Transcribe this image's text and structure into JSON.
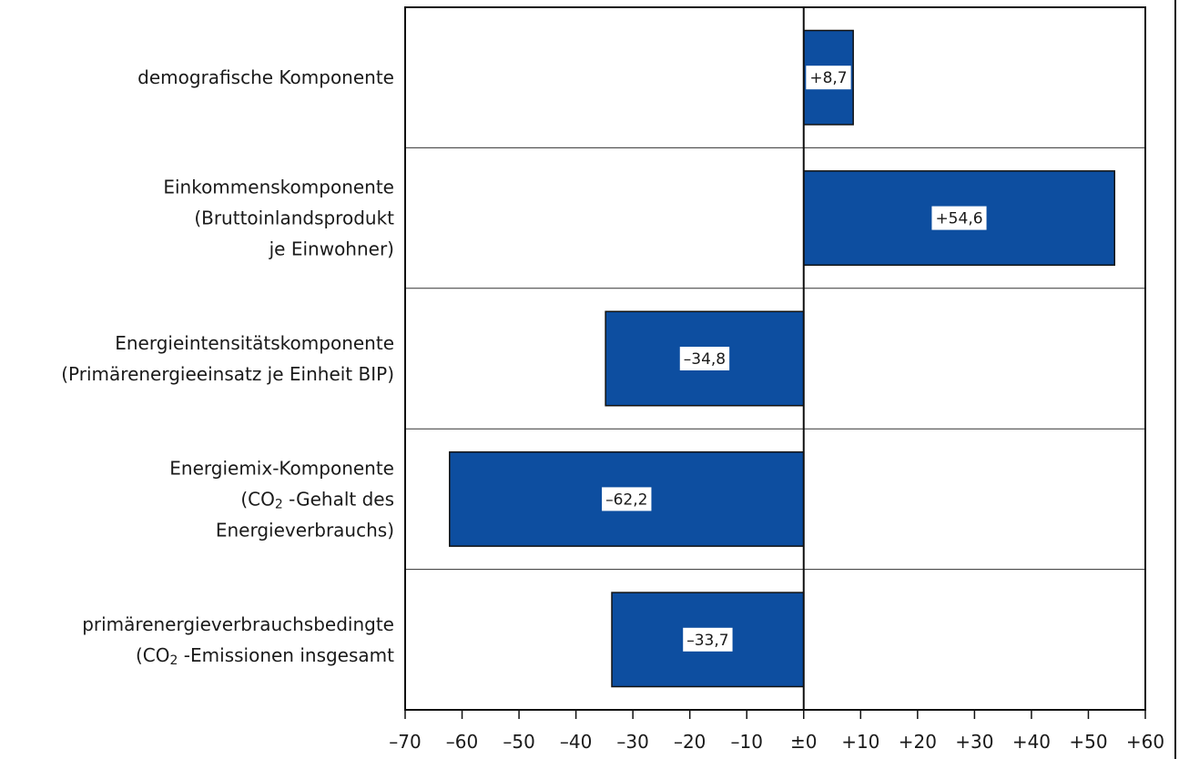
{
  "chart_data": {
    "type": "bar",
    "orientation": "horizontal",
    "categories": [
      [
        "demografische Komponente"
      ],
      [
        "Einkommenskomponente",
        "(Bruttoinlandsprodukt",
        "je Einwohner)"
      ],
      [
        "Energieintensitätskomponente",
        "(Primärenergieeinsatz je Einheit BIP)"
      ],
      [
        "Energiemix-Komponente",
        "(CO₂ -Gehalt des",
        "Energieverbrauchs)"
      ],
      [
        "primärenergieverbrauchsbedingte",
        "(CO₂ -Emissionen insgesamt"
      ]
    ],
    "values": [
      8.7,
      54.6,
      -34.8,
      -62.2,
      -33.7
    ],
    "value_labels": [
      "+8,7",
      "+54,6",
      "–34,8",
      "–62,2",
      "–33,7"
    ],
    "xlim": [
      -70,
      60
    ],
    "xticks": [
      -70,
      -60,
      -50,
      -40,
      -30,
      -20,
      -10,
      0,
      10,
      20,
      30,
      40,
      50,
      60
    ],
    "xtick_labels": [
      "–70",
      "–60",
      "–50",
      "–40",
      "–30",
      "–20",
      "–10",
      "±0",
      "+10",
      "+20",
      "+30",
      "+40",
      "+50",
      "+60"
    ],
    "bar_color": "#0d4ea0",
    "grid": false,
    "title": "",
    "xlabel": "",
    "ylabel": ""
  }
}
